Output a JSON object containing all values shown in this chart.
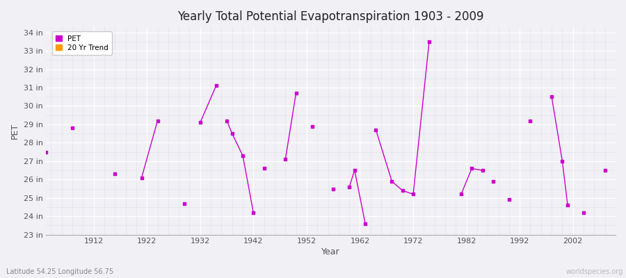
{
  "title": "Yearly Total Potential Evapotranspiration 1903 - 2009",
  "xlabel": "Year",
  "ylabel": "PET",
  "xlim": [
    1903,
    2010
  ],
  "ylim": [
    23,
    34.3
  ],
  "ytick_vals": [
    23,
    24,
    25,
    26,
    27,
    28,
    29,
    30,
    31,
    32,
    33,
    34
  ],
  "ytick_labels": [
    "23 in",
    "24 in",
    "25 in",
    "26 in",
    "27 in",
    "28 in",
    "29 in",
    "30 in",
    "31 in",
    "32 in",
    "33 in",
    "34 in"
  ],
  "xticks": [
    1912,
    1922,
    1932,
    1942,
    1952,
    1962,
    1972,
    1982,
    1992,
    2002
  ],
  "pet_color": "#cc00cc",
  "trend_color": "#ff9900",
  "fig_bg": "#f0f0f5",
  "plot_bg": "#f0f0f5",
  "watermark": "worldspecies.org",
  "subtitle": "Latitude 54.25 Longitude 56.75",
  "pet_data": [
    [
      1903,
      27.5
    ],
    [
      1908,
      28.8
    ],
    [
      1916,
      26.3
    ],
    [
      1921,
      26.1
    ],
    [
      1924,
      29.2
    ],
    [
      1929,
      24.7
    ],
    [
      1932,
      29.1
    ],
    [
      1935,
      31.1
    ],
    [
      1937,
      29.2
    ],
    [
      1938,
      28.5
    ],
    [
      1940,
      27.3
    ],
    [
      1942,
      24.2
    ],
    [
      1944,
      26.6
    ],
    [
      1948,
      27.1
    ],
    [
      1950,
      30.7
    ],
    [
      1953,
      28.9
    ],
    [
      1957,
      25.5
    ],
    [
      1960,
      25.6
    ],
    [
      1961,
      26.5
    ],
    [
      1963,
      23.6
    ],
    [
      1965,
      28.7
    ],
    [
      1968,
      25.9
    ],
    [
      1970,
      25.4
    ],
    [
      1972,
      25.2
    ],
    [
      1975,
      33.5
    ],
    [
      1981,
      25.2
    ],
    [
      1983,
      26.6
    ],
    [
      1985,
      26.5
    ],
    [
      1987,
      25.9
    ],
    [
      1990,
      24.9
    ],
    [
      1994,
      29.2
    ],
    [
      1998,
      30.5
    ],
    [
      2000,
      27.0
    ],
    [
      2001,
      24.6
    ],
    [
      2004,
      24.2
    ],
    [
      2008,
      26.5
    ]
  ],
  "line_segments": [
    [
      [
        1921,
        26.1
      ],
      [
        1924,
        29.2
      ]
    ],
    [
      [
        1932,
        29.1
      ],
      [
        1935,
        31.1
      ]
    ],
    [
      [
        1937,
        29.2
      ],
      [
        1938,
        28.5
      ],
      [
        1940,
        27.3
      ],
      [
        1942,
        24.2
      ]
    ],
    [
      [
        1948,
        27.1
      ],
      [
        1950,
        30.7
      ]
    ],
    [
      [
        1960,
        25.6
      ],
      [
        1961,
        26.5
      ],
      [
        1963,
        23.6
      ]
    ],
    [
      [
        1965,
        28.7
      ],
      [
        1968,
        25.9
      ],
      [
        1970,
        25.4
      ],
      [
        1972,
        25.2
      ],
      [
        1975,
        33.5
      ]
    ],
    [
      [
        1981,
        25.2
      ],
      [
        1983,
        26.6
      ],
      [
        1985,
        26.5
      ]
    ],
    [
      [
        1998,
        30.5
      ],
      [
        2000,
        27.0
      ]
    ],
    [
      [
        2000,
        27.0
      ],
      [
        2001,
        24.6
      ]
    ]
  ]
}
